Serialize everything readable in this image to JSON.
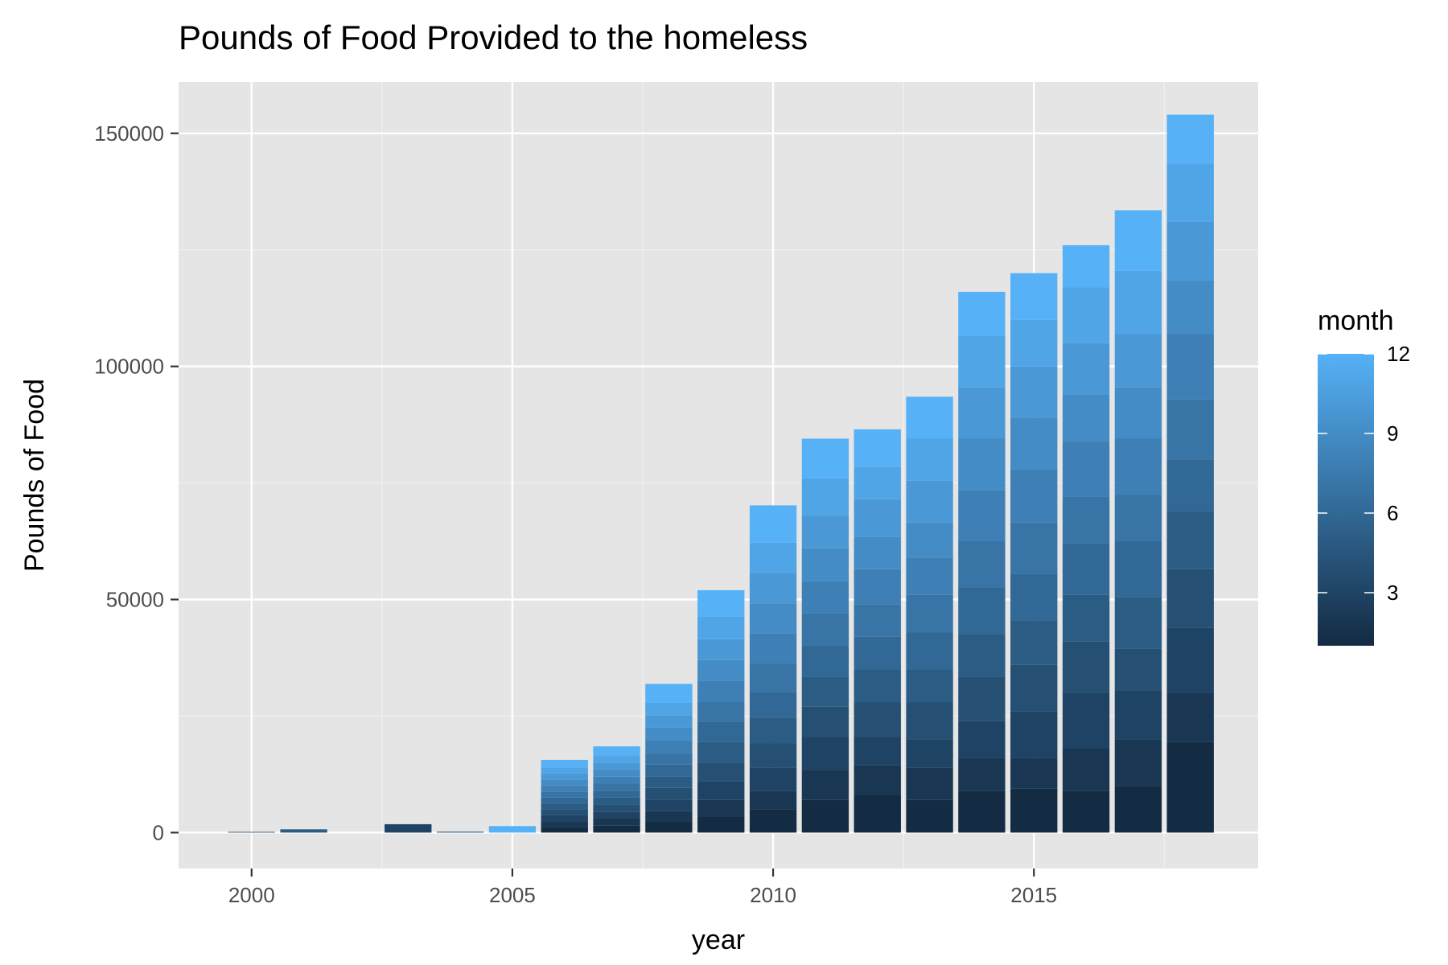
{
  "chart_data": {
    "type": "bar",
    "stacked": true,
    "title": "Pounds of Food Provided to the homeless",
    "xlabel": "year",
    "ylabel": "Pounds of Food",
    "xlim": [
      1998.6,
      2019.3
    ],
    "ylim": [
      -7700,
      161000
    ],
    "x_ticks": [
      2000,
      2005,
      2010,
      2015
    ],
    "x_tick_labels": [
      "2000",
      "2005",
      "2010",
      "2015"
    ],
    "y_ticks": [
      0,
      50000,
      100000,
      150000
    ],
    "y_tick_labels": [
      "0",
      "50000",
      "100000",
      "150000"
    ],
    "grid": true,
    "legend": {
      "title": "month",
      "position": "right",
      "type": "colorbar",
      "range": [
        1,
        12
      ],
      "breaks": [
        3,
        6,
        9,
        12
      ],
      "labels": [
        "3",
        "6",
        "9",
        "12"
      ],
      "low_color": "#132b43",
      "high_color": "#56b1f7"
    },
    "colors": {
      "panel_background": "#e5e5e5",
      "grid_major": "#ffffff",
      "grid_minor": "#f2f2f2",
      "low": "#132b43",
      "high": "#56b1f7"
    },
    "series": [
      {
        "year": 2000,
        "months": [
          3
        ],
        "values": [
          150
        ]
      },
      {
        "year": 2001,
        "months": [
          5
        ],
        "values": [
          700
        ]
      },
      {
        "year": 2003,
        "months": [
          3
        ],
        "values": [
          1800
        ]
      },
      {
        "year": 2004,
        "months": [
          5
        ],
        "values": [
          200
        ]
      },
      {
        "year": 2005,
        "months": [
          12
        ],
        "values": [
          1400
        ]
      },
      {
        "year": 2006,
        "months": [
          1,
          2,
          3,
          4,
          5,
          6,
          7,
          8,
          9,
          10,
          11,
          12
        ],
        "values": [
          1200,
          1200,
          1300,
          1200,
          1300,
          1300,
          1300,
          1300,
          1300,
          1300,
          1300,
          1600
        ]
      },
      {
        "year": 2007,
        "months": [
          1,
          2,
          3,
          4,
          5,
          6,
          7,
          8,
          9,
          10,
          11,
          12
        ],
        "values": [
          1500,
          1500,
          1500,
          1500,
          1500,
          1500,
          1500,
          1500,
          1500,
          1500,
          1600,
          1900
        ]
      },
      {
        "year": 2008,
        "months": [
          1,
          2,
          3,
          4,
          5,
          6,
          7,
          8,
          9,
          10,
          11,
          12
        ],
        "values": [
          2300,
          2300,
          2500,
          2500,
          2500,
          2500,
          2500,
          2700,
          2700,
          2700,
          2700,
          4000
        ]
      },
      {
        "year": 2009,
        "months": [
          1,
          2,
          3,
          4,
          5,
          6,
          7,
          8,
          9,
          10,
          11,
          12
        ],
        "values": [
          3500,
          3500,
          4000,
          4000,
          4500,
          4200,
          4300,
          4500,
          4500,
          4500,
          4800,
          5700
        ]
      },
      {
        "year": 2010,
        "months": [
          1,
          2,
          3,
          4,
          5,
          6,
          7,
          8,
          9,
          10,
          11,
          12
        ],
        "values": [
          5000,
          4000,
          5000,
          5200,
          5500,
          5500,
          6000,
          6500,
          6500,
          6500,
          6500,
          8000
        ]
      },
      {
        "year": 2011,
        "months": [
          1,
          2,
          3,
          4,
          5,
          6,
          7,
          8,
          9,
          10,
          11,
          12
        ],
        "values": [
          7000,
          6500,
          7000,
          6500,
          6500,
          6500,
          7000,
          7000,
          7000,
          7000,
          8000,
          8500
        ]
      },
      {
        "year": 2012,
        "months": [
          1,
          2,
          3,
          4,
          5,
          6,
          7,
          8,
          9,
          10,
          11,
          12
        ],
        "values": [
          8000,
          6500,
          6000,
          7500,
          7000,
          7000,
          7000,
          7500,
          7000,
          8000,
          7000,
          8000
        ]
      },
      {
        "year": 2013,
        "months": [
          1,
          2,
          3,
          4,
          5,
          6,
          7,
          8,
          9,
          10,
          11,
          12
        ],
        "values": [
          7000,
          7000,
          6000,
          8000,
          7000,
          8000,
          8000,
          8000,
          7500,
          9000,
          9000,
          9000
        ]
      },
      {
        "year": 2014,
        "months": [
          1,
          2,
          3,
          4,
          5,
          6,
          7,
          8,
          9,
          10,
          11,
          12
        ],
        "values": [
          9000,
          7000,
          8000,
          9500,
          9000,
          10000,
          10000,
          11000,
          11000,
          11000,
          11000,
          9500
        ]
      },
      {
        "year": 2015,
        "months": [
          1,
          2,
          3,
          4,
          5,
          6,
          7,
          8,
          9,
          10,
          11,
          12
        ],
        "values": [
          9500,
          6500,
          10000,
          10000,
          9500,
          10000,
          11000,
          11500,
          11000,
          11000,
          10000,
          10000
        ]
      },
      {
        "year": 2016,
        "months": [
          1,
          2,
          3,
          4,
          5,
          6,
          7,
          8,
          9,
          10,
          11,
          12
        ],
        "values": [
          9000,
          9000,
          12000,
          11000,
          10000,
          11000,
          10000,
          12000,
          10000,
          11000,
          12000,
          9000
        ]
      },
      {
        "year": 2017,
        "months": [
          1,
          2,
          3,
          4,
          5,
          6,
          7,
          8,
          9,
          10,
          11,
          12
        ],
        "values": [
          10000,
          10000,
          10500,
          9000,
          11000,
          12000,
          10000,
          12000,
          11000,
          11500,
          13500,
          13000
        ]
      },
      {
        "year": 2018,
        "months": [
          1,
          2,
          3,
          4,
          5,
          6,
          7,
          8,
          9,
          10,
          11,
          12
        ],
        "values": [
          19500,
          10500,
          14000,
          12500,
          12500,
          11000,
          13000,
          14000,
          11500,
          12500,
          12500,
          10500
        ]
      }
    ]
  }
}
